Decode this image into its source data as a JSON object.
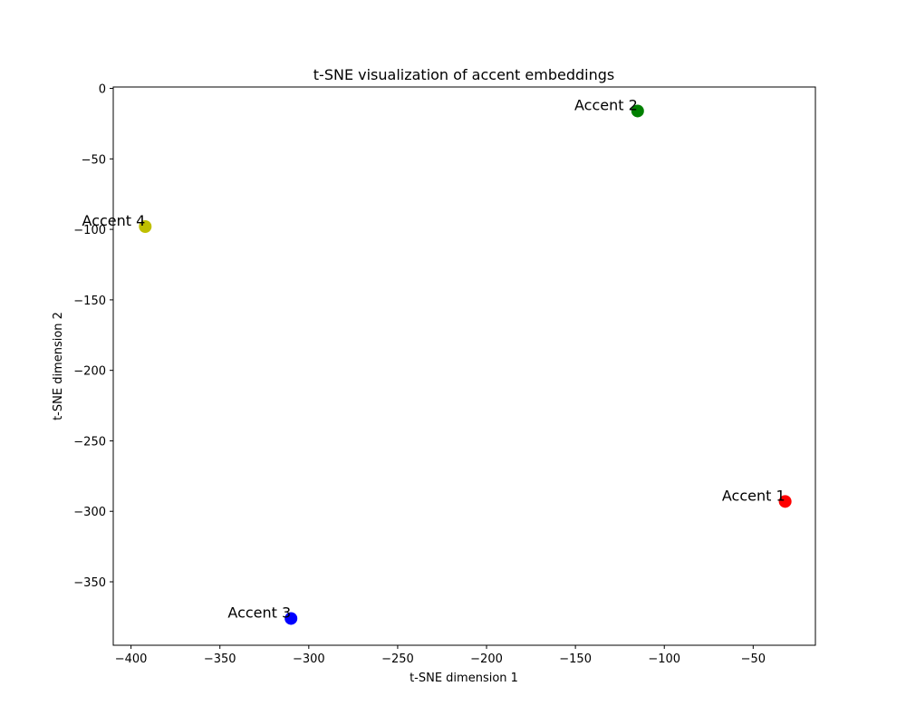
{
  "chart_data": {
    "type": "scatter",
    "title": "t-SNE visualization of accent embeddings",
    "xlabel": "t-SNE dimension 1",
    "ylabel": "t-SNE dimension 2",
    "xlim": [
      -410,
      -15
    ],
    "ylim": [
      -395,
      1
    ],
    "xticks": [
      -400,
      -350,
      -300,
      -250,
      -200,
      -150,
      -100,
      -50
    ],
    "yticks": [
      0,
      -50,
      -100,
      -150,
      -200,
      -250,
      -300,
      -350
    ],
    "grid": false,
    "points": [
      {
        "label": "Accent 1",
        "x": -32,
        "y": -293,
        "color": "#ff0000"
      },
      {
        "label": "Accent 2",
        "x": -115,
        "y": -16,
        "color": "#008000"
      },
      {
        "label": "Accent 3",
        "x": -310,
        "y": -376,
        "color": "#0000ff"
      },
      {
        "label": "Accent 4",
        "x": -392,
        "y": -98,
        "color": "#bfbf00"
      }
    ]
  }
}
